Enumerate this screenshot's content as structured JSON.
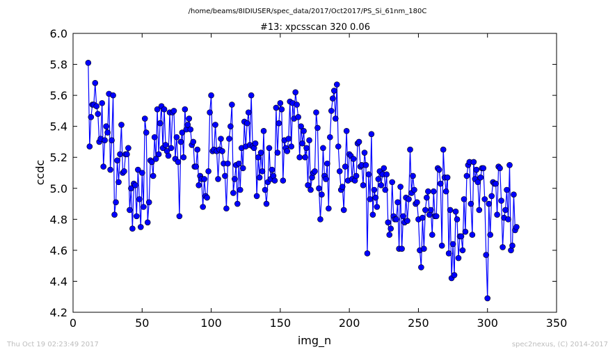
{
  "suptitle": "/home/beams/8IDIUSER/spec_data/2017/Oct2017/PS_Si_61nm_180C",
  "footer": {
    "timestamp": "Thu Oct 19 02:23:49 2017",
    "credit": "spec2nexus, (C) 2014-2017"
  },
  "colors": {
    "series": "#0000ff",
    "axes": "#000000",
    "footer": "#bdbdbd"
  },
  "chart_data": {
    "type": "line",
    "title": "#13: xpcsscan 320 0.06",
    "xlabel": "img_n",
    "ylabel": "ccdc",
    "xlim": [
      0,
      350
    ],
    "ylim": [
      4.2,
      6.0
    ],
    "xticks": [
      "0",
      "50",
      "100",
      "150",
      "200",
      "250",
      "300",
      "350"
    ],
    "yticks": [
      "4.2",
      "4.4",
      "4.6",
      "4.8",
      "5.0",
      "5.2",
      "5.4",
      "5.6",
      "5.8",
      "6.0"
    ],
    "grid": false,
    "marker": "circle",
    "x_start": 11,
    "x_step": 1,
    "series": [
      {
        "values": [
          5.81,
          5.27,
          5.46,
          5.54,
          5.54,
          5.68,
          5.53,
          5.48,
          5.3,
          5.32,
          5.55,
          5.14,
          5.31,
          5.4,
          5.36,
          5.61,
          5.12,
          5.31,
          5.6,
          4.83,
          4.91,
          5.18,
          5.04,
          5.22,
          5.41,
          5.1,
          5.11,
          5.22,
          5.22,
          5.26,
          4.86,
          5.0,
          4.74,
          5.03,
          5.02,
          4.82,
          5.12,
          4.93,
          4.75,
          5.1,
          4.88,
          5.45,
          5.36,
          4.78,
          4.91,
          5.18,
          5.17,
          5.08,
          5.33,
          5.19,
          5.51,
          5.22,
          5.42,
          5.53,
          5.26,
          5.51,
          5.28,
          5.24,
          5.21,
          5.49,
          5.26,
          5.49,
          5.5,
          5.19,
          5.33,
          5.17,
          4.82,
          5.3,
          5.36,
          5.2,
          5.51,
          5.38,
          5.41,
          5.45,
          5.38,
          5.28,
          5.3,
          5.14,
          5.14,
          5.25,
          5.02,
          5.08,
          5.06,
          4.88,
          5.06,
          4.95,
          4.94,
          5.11,
          5.49,
          5.6,
          5.24,
          5.25,
          5.41,
          5.24,
          5.06,
          5.25,
          5.32,
          5.24,
          5.16,
          5.08,
          4.87,
          5.16,
          5.32,
          5.4,
          5.54,
          4.97,
          5.06,
          5.15,
          4.9,
          5.16,
          4.99,
          5.26,
          5.13,
          5.43,
          5.27,
          5.42,
          5.49,
          5.28,
          5.6,
          5.27,
          5.26,
          5.29,
          4.95,
          5.2,
          5.07,
          5.23,
          5.11,
          5.37,
          4.99,
          4.9,
          5.04,
          5.26,
          5.06,
          5.12,
          5.08,
          5.05,
          5.52,
          5.23,
          5.42,
          5.55,
          5.51,
          5.05,
          5.31,
          5.26,
          5.24,
          5.32,
          5.56,
          5.27,
          5.55,
          5.45,
          5.62,
          5.54,
          5.46,
          5.2,
          5.4,
          5.29,
          5.37,
          5.2,
          5.26,
          5.02,
          5.31,
          4.99,
          5.07,
          5.1,
          5.11,
          5.49,
          5.39,
          5.0,
          4.8,
          4.96,
          5.26,
          5.08,
          5.06,
          5.16,
          4.87,
          5.33,
          5.5,
          5.58,
          5.63,
          5.45,
          5.67,
          5.27,
          5.11,
          4.99,
          5.01,
          4.86,
          5.14,
          5.37,
          5.05,
          5.22,
          5.21,
          5.06,
          5.19,
          5.05,
          5.08,
          5.29,
          5.3,
          5.14,
          5.15,
          5.02,
          5.23,
          5.15,
          4.58,
          5.09,
          4.93,
          5.35,
          4.83,
          4.99,
          4.94,
          4.88,
          5.06,
          5.11,
          5.02,
          5.09,
          5.13,
          4.99,
          5.09,
          4.78,
          4.7,
          4.74,
          5.04,
          4.82,
          4.8,
          4.8,
          4.91,
          4.61,
          5.01,
          4.61,
          4.82,
          4.78,
          4.94,
          4.79,
          4.93,
          5.25,
          4.97,
          5.08,
          4.99,
          4.9,
          4.91,
          4.8,
          4.6,
          4.49,
          4.81,
          4.61,
          4.86,
          4.94,
          4.98,
          4.83,
          4.86,
          4.7,
          4.98,
          4.82,
          4.82,
          5.13,
          5.12,
          5.03,
          4.63,
          5.25,
          5.07,
          4.98,
          5.07,
          4.58,
          4.86,
          4.42,
          4.64,
          4.44,
          4.85,
          4.8,
          4.55,
          4.69,
          4.69,
          4.6,
          4.93,
          4.72,
          5.08,
          5.15,
          5.17,
          4.9,
          4.7,
          5.17,
          5.06,
          5.12,
          5.04,
          4.86,
          5.07,
          5.13,
          5.13,
          4.93,
          4.57,
          4.29,
          4.9,
          4.7,
          4.95,
          5.04,
          5.03,
          5.03,
          4.83,
          5.14,
          5.13,
          4.92,
          4.62,
          4.81,
          4.86,
          4.99,
          4.8,
          5.15,
          4.6,
          4.63,
          4.96,
          4.73,
          4.75
        ]
      }
    ]
  }
}
